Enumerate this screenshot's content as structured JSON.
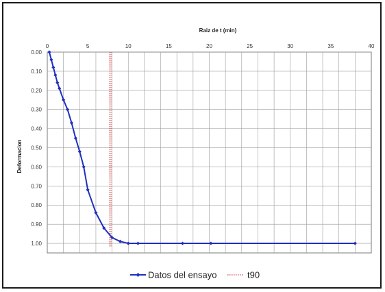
{
  "chart_data": {
    "type": "line",
    "title": "",
    "xlabel": "Raiz de t (min)",
    "ylabel": "Deformacion",
    "xlim": [
      0,
      40
    ],
    "ylim": [
      0.0,
      1.05
    ],
    "x_ticks": [
      "0",
      "5",
      "10",
      "15",
      "20",
      "25",
      "30",
      "35",
      "40"
    ],
    "y_ticks": [
      "0.00",
      "0.10",
      "0.20",
      "0.30",
      "0.40",
      "0.50",
      "0.60",
      "0.70",
      "0.80",
      "0.90",
      "1.00"
    ],
    "x_axis_position": "top",
    "y_axis_reversed": true,
    "grid": true,
    "legend": "bottom",
    "series": [
      {
        "name": "Datos del ensayo",
        "color": "#1f2fbf",
        "marker": "diamond",
        "x": [
          0.25,
          0.5,
          0.75,
          1.0,
          1.25,
          1.5,
          2.0,
          2.5,
          3.0,
          3.5,
          4.0,
          4.5,
          5.0,
          6.0,
          7.0,
          8.0,
          9.0,
          10.0,
          11.2,
          16.7,
          20.2,
          38.0
        ],
        "y": [
          0.0,
          0.04,
          0.08,
          0.12,
          0.16,
          0.19,
          0.25,
          0.3,
          0.37,
          0.45,
          0.52,
          0.6,
          0.72,
          0.84,
          0.92,
          0.97,
          0.99,
          1.0,
          1.0,
          1.0,
          1.0,
          1.0
        ]
      },
      {
        "name": "t90",
        "color": "#d04040",
        "style": "dotted",
        "x": [
          7.7,
          7.7
        ],
        "y": [
          0.0,
          1.02
        ]
      }
    ]
  }
}
